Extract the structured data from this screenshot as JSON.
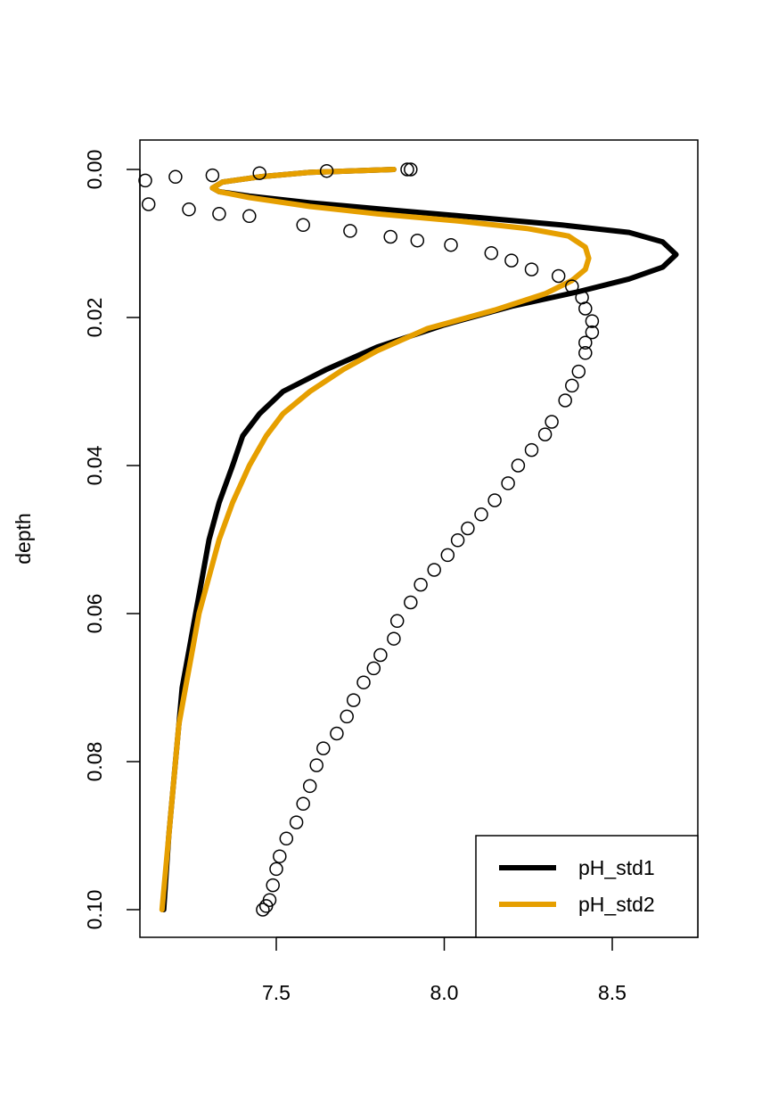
{
  "chart_data": {
    "type": "line",
    "ylabel": "depth",
    "xlabel": "",
    "xlim": [
      7.1,
      8.75
    ],
    "ylim": [
      0.1,
      0.0
    ],
    "y_inverted": true,
    "x_ticks": [
      7.5,
      8.0,
      8.5
    ],
    "x_tick_labels": [
      "7.5",
      "8.0",
      "8.5"
    ],
    "y_ticks": [
      0.0,
      0.02,
      0.04,
      0.06,
      0.08,
      0.1
    ],
    "y_tick_labels": [
      "0.00",
      "0.02",
      "0.04",
      "0.06",
      "0.08",
      "0.10"
    ],
    "grid": false,
    "legend_position": "bottom-right",
    "series": [
      {
        "name": "pH_std1",
        "kind": "line",
        "color": "#000000",
        "points": [
          [
            7.85,
            0.0
          ],
          [
            7.6,
            0.0004
          ],
          [
            7.45,
            0.001
          ],
          [
            7.34,
            0.0017
          ],
          [
            7.31,
            0.0025
          ],
          [
            7.33,
            0.003
          ],
          [
            7.42,
            0.0036
          ],
          [
            7.6,
            0.0045
          ],
          [
            7.85,
            0.0055
          ],
          [
            8.1,
            0.0065
          ],
          [
            8.35,
            0.0075
          ],
          [
            8.55,
            0.0085
          ],
          [
            8.65,
            0.0098
          ],
          [
            8.69,
            0.0115
          ],
          [
            8.65,
            0.0132
          ],
          [
            8.55,
            0.0148
          ],
          [
            8.4,
            0.0165
          ],
          [
            8.2,
            0.0185
          ],
          [
            8.0,
            0.021
          ],
          [
            7.8,
            0.024
          ],
          [
            7.65,
            0.027
          ],
          [
            7.52,
            0.03
          ],
          [
            7.45,
            0.033
          ],
          [
            7.4,
            0.036
          ],
          [
            7.37,
            0.04
          ],
          [
            7.33,
            0.045
          ],
          [
            7.3,
            0.05
          ],
          [
            7.28,
            0.055
          ],
          [
            7.26,
            0.06
          ],
          [
            7.24,
            0.065
          ],
          [
            7.22,
            0.07
          ],
          [
            7.21,
            0.075
          ],
          [
            7.2,
            0.08
          ],
          [
            7.18,
            0.09
          ],
          [
            7.165,
            0.1
          ]
        ]
      },
      {
        "name": "pH_std2",
        "kind": "line",
        "color": "#E69F00",
        "points": [
          [
            7.85,
            0.0
          ],
          [
            7.6,
            0.0004
          ],
          [
            7.45,
            0.001
          ],
          [
            7.34,
            0.0017
          ],
          [
            7.31,
            0.0025
          ],
          [
            7.33,
            0.003
          ],
          [
            7.42,
            0.0038
          ],
          [
            7.6,
            0.005
          ],
          [
            7.8,
            0.006
          ],
          [
            8.05,
            0.007
          ],
          [
            8.25,
            0.008
          ],
          [
            8.37,
            0.009
          ],
          [
            8.42,
            0.0105
          ],
          [
            8.43,
            0.012
          ],
          [
            8.42,
            0.0135
          ],
          [
            8.38,
            0.015
          ],
          [
            8.3,
            0.0168
          ],
          [
            8.15,
            0.019
          ],
          [
            7.95,
            0.0215
          ],
          [
            7.8,
            0.0245
          ],
          [
            7.7,
            0.027
          ],
          [
            7.6,
            0.03
          ],
          [
            7.52,
            0.033
          ],
          [
            7.47,
            0.036
          ],
          [
            7.42,
            0.04
          ],
          [
            7.37,
            0.045
          ],
          [
            7.33,
            0.05
          ],
          [
            7.3,
            0.055
          ],
          [
            7.27,
            0.06
          ],
          [
            7.25,
            0.065
          ],
          [
            7.23,
            0.07
          ],
          [
            7.21,
            0.075
          ],
          [
            7.2,
            0.08
          ],
          [
            7.18,
            0.09
          ],
          [
            7.16,
            0.1
          ]
        ]
      },
      {
        "name": "",
        "kind": "points",
        "color": "#000000",
        "points": [
          [
            7.9,
            0.0
          ],
          [
            7.89,
            0.0
          ],
          [
            7.65,
            0.0002
          ],
          [
            7.45,
            0.0005
          ],
          [
            7.31,
            0.0008
          ],
          [
            7.2,
            0.001
          ],
          [
            7.11,
            0.0015
          ],
          [
            7.12,
            0.0047
          ],
          [
            7.24,
            0.0054
          ],
          [
            7.33,
            0.006
          ],
          [
            7.42,
            0.0063
          ],
          [
            7.58,
            0.0075
          ],
          [
            7.72,
            0.0083
          ],
          [
            7.84,
            0.0091
          ],
          [
            7.92,
            0.0096
          ],
          [
            8.02,
            0.0102
          ],
          [
            8.14,
            0.0113
          ],
          [
            8.2,
            0.0123
          ],
          [
            8.26,
            0.0135
          ],
          [
            8.34,
            0.0144
          ],
          [
            8.38,
            0.0158
          ],
          [
            8.41,
            0.0173
          ],
          [
            8.42,
            0.0188
          ],
          [
            8.44,
            0.0205
          ],
          [
            8.44,
            0.022
          ],
          [
            8.42,
            0.0234
          ],
          [
            8.42,
            0.0248
          ],
          [
            8.4,
            0.0273
          ],
          [
            8.38,
            0.0292
          ],
          [
            8.36,
            0.0312
          ],
          [
            8.32,
            0.0341
          ],
          [
            8.3,
            0.0358
          ],
          [
            8.26,
            0.0379
          ],
          [
            8.22,
            0.04
          ],
          [
            8.19,
            0.0424
          ],
          [
            8.15,
            0.0447
          ],
          [
            8.11,
            0.0466
          ],
          [
            8.07,
            0.0485
          ],
          [
            8.04,
            0.0501
          ],
          [
            8.01,
            0.0521
          ],
          [
            7.97,
            0.0541
          ],
          [
            7.93,
            0.0561
          ],
          [
            7.9,
            0.0585
          ],
          [
            7.86,
            0.061
          ],
          [
            7.85,
            0.0634
          ],
          [
            7.81,
            0.0656
          ],
          [
            7.79,
            0.0674
          ],
          [
            7.76,
            0.0693
          ],
          [
            7.73,
            0.0717
          ],
          [
            7.71,
            0.0739
          ],
          [
            7.68,
            0.0762
          ],
          [
            7.64,
            0.0782
          ],
          [
            7.62,
            0.0805
          ],
          [
            7.6,
            0.0833
          ],
          [
            7.58,
            0.0857
          ],
          [
            7.56,
            0.0882
          ],
          [
            7.53,
            0.0904
          ],
          [
            7.51,
            0.0928
          ],
          [
            7.5,
            0.0945
          ],
          [
            7.49,
            0.0967
          ],
          [
            7.48,
            0.0987
          ],
          [
            7.47,
            0.0995
          ],
          [
            7.46,
            0.1
          ]
        ]
      }
    ],
    "legend": [
      {
        "label": "pH_std1",
        "color": "#000000"
      },
      {
        "label": "pH_std2",
        "color": "#E69F00"
      }
    ]
  }
}
